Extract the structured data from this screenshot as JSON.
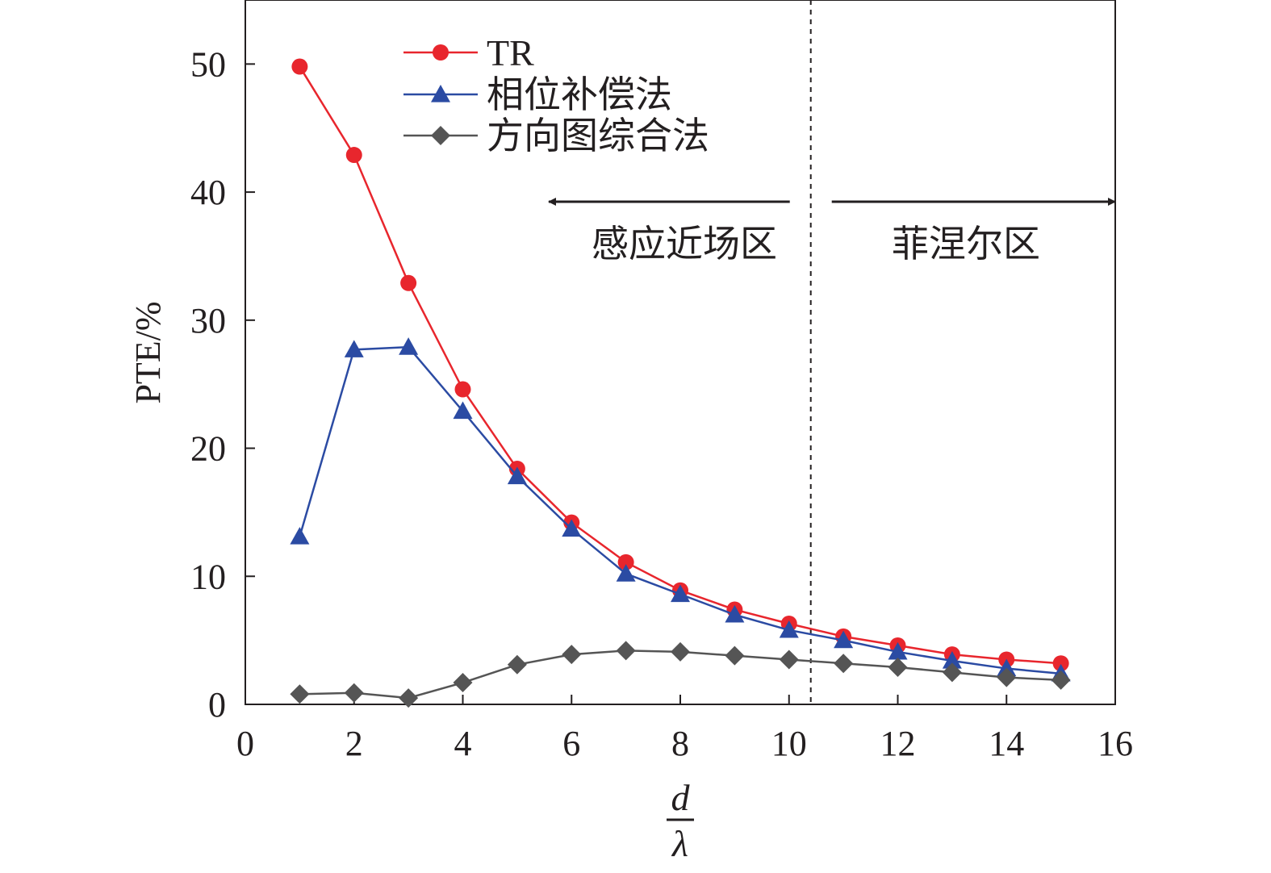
{
  "chart_data": {
    "type": "line",
    "ylabel": "PTE/%",
    "xlabel": {
      "numerator": "d",
      "denominator": "λ"
    },
    "xlim": [
      0,
      16
    ],
    "ylim": [
      0,
      55
    ],
    "xticks": [
      0,
      2,
      4,
      6,
      8,
      10,
      12,
      14,
      16
    ],
    "yticks": [
      0,
      10,
      20,
      30,
      40,
      50
    ],
    "grid": false,
    "legend_position": "top-left",
    "x": [
      1,
      2,
      3,
      4,
      5,
      6,
      7,
      8,
      9,
      10,
      11,
      12,
      13,
      14,
      15
    ],
    "series": [
      {
        "name": "TR",
        "color": "#e8262d",
        "marker": "circle",
        "values": [
          49.8,
          42.9,
          32.9,
          24.6,
          18.4,
          14.2,
          11.1,
          8.9,
          7.4,
          6.3,
          5.3,
          4.6,
          3.9,
          3.5,
          3.2
        ]
      },
      {
        "name": "相位补偿法",
        "color": "#2b4ba3",
        "marker": "triangle",
        "values": [
          13.1,
          27.7,
          27.9,
          22.9,
          17.8,
          13.7,
          10.2,
          8.6,
          7.0,
          5.8,
          5.0,
          4.1,
          3.4,
          2.8,
          2.4
        ]
      },
      {
        "name": "方向图综合法",
        "color": "#555555",
        "marker": "diamond",
        "values": [
          0.8,
          0.9,
          0.5,
          1.7,
          3.1,
          3.9,
          4.2,
          4.1,
          3.8,
          3.5,
          3.2,
          2.9,
          2.5,
          2.1,
          1.9
        ]
      }
    ],
    "annotations": {
      "boundary_x": 10.4,
      "near_field_label": "感应近场区",
      "fresnel_label": "菲涅尔区"
    }
  }
}
